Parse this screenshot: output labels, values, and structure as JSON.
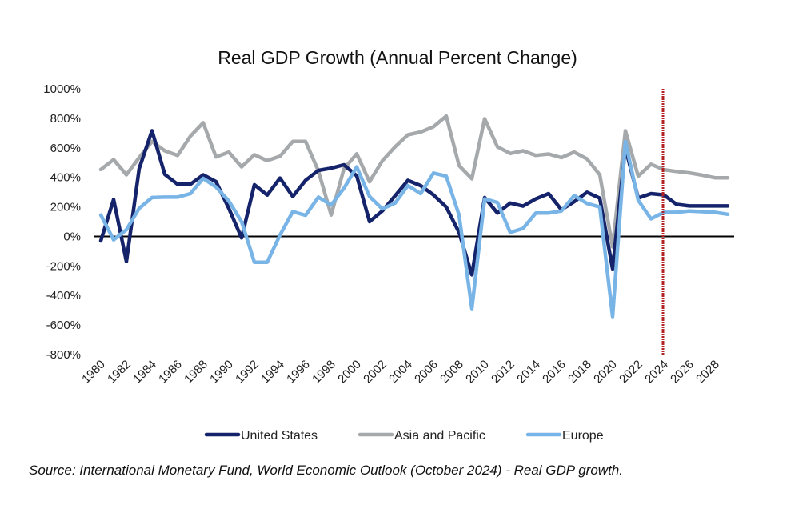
{
  "chart_data": {
    "type": "line",
    "title": "Real GDP Growth (Annual Percent Change)",
    "xlabel": "",
    "ylabel": "",
    "ylim": [
      -800,
      1000
    ],
    "y_ticks": [
      "1000%",
      "800%",
      "600%",
      "400%",
      "200%",
      "0%",
      "-200%",
      "-400%",
      "-600%",
      "-800%"
    ],
    "y_tick_values": [
      1000,
      800,
      600,
      400,
      200,
      0,
      -200,
      -400,
      -600,
      -800
    ],
    "x": [
      1980,
      1981,
      1982,
      1983,
      1984,
      1985,
      1986,
      1987,
      1988,
      1989,
      1990,
      1991,
      1992,
      1993,
      1994,
      1995,
      1996,
      1997,
      1998,
      1999,
      2000,
      2001,
      2002,
      2003,
      2004,
      2005,
      2006,
      2007,
      2008,
      2009,
      2010,
      2011,
      2012,
      2013,
      2014,
      2015,
      2016,
      2017,
      2018,
      2019,
      2020,
      2021,
      2022,
      2023,
      2024,
      2025,
      2026,
      2027,
      2028,
      2029
    ],
    "x_tick_labels": [
      "1980",
      "1982",
      "1984",
      "1986",
      "1988",
      "1990",
      "1992",
      "1994",
      "1996",
      "1998",
      "2000",
      "2002",
      "2004",
      "2006",
      "2008",
      "2010",
      "2012",
      "2014",
      "2016",
      "2018",
      "2020",
      "2022",
      "2024",
      "2026",
      "2028"
    ],
    "x_tick_values": [
      1980,
      1982,
      1984,
      1986,
      1988,
      1990,
      1992,
      1994,
      1996,
      1998,
      2000,
      2002,
      2004,
      2006,
      2008,
      2010,
      2012,
      2014,
      2016,
      2018,
      2020,
      2022,
      2024,
      2026,
      2028
    ],
    "grid": false,
    "zero_line": true,
    "legend_position": "bottom",
    "series": [
      {
        "name": "United States",
        "color": "#15236b",
        "values": [
          -30,
          250,
          -170,
          460,
          716,
          420,
          353,
          353,
          417,
          371,
          190,
          -10,
          350,
          280,
          395,
          270,
          380,
          447,
          462,
          485,
          410,
          100,
          172,
          275,
          380,
          344,
          281,
          199,
          27,
          -260,
          263,
          158,
          226,
          205,
          254,
          290,
          181,
          235,
          299,
          259,
          -220,
          600,
          260,
          290,
          281,
          217,
          206,
          206,
          206,
          206
        ]
      },
      {
        "name": "Asia and Pacific",
        "color": "#a6a9ab",
        "values": [
          453,
          520,
          417,
          534,
          643,
          580,
          549,
          679,
          770,
          538,
          571,
          471,
          553,
          513,
          543,
          643,
          643,
          444,
          145,
          458,
          559,
          370,
          512,
          607,
          688,
          707,
          743,
          815,
          480,
          390,
          797,
          607,
          562,
          580,
          549,
          558,
          534,
          571,
          525,
          417,
          -72,
          716,
          408,
          489,
          452,
          440,
          430,
          415,
          397,
          397
        ]
      },
      {
        "name": "Europe",
        "color": "#79b4e6",
        "values": [
          145,
          -23,
          45,
          190,
          263,
          266,
          266,
          290,
          393,
          335,
          240,
          100,
          -175,
          -175,
          9,
          168,
          143,
          266,
          213,
          326,
          471,
          270,
          186,
          226,
          344,
          290,
          429,
          408,
          145,
          -489,
          254,
          230,
          27,
          54,
          158,
          158,
          172,
          277,
          223,
          199,
          -543,
          643,
          245,
          119,
          163,
          163,
          172,
          168,
          163,
          150
        ]
      }
    ],
    "vertical_marker": {
      "x": 2024,
      "color": "#b22222",
      "style": "dashed"
    }
  },
  "source_text": "Source: International Monetary Fund, World Economic Outlook (October 2024) - Real GDP growth."
}
